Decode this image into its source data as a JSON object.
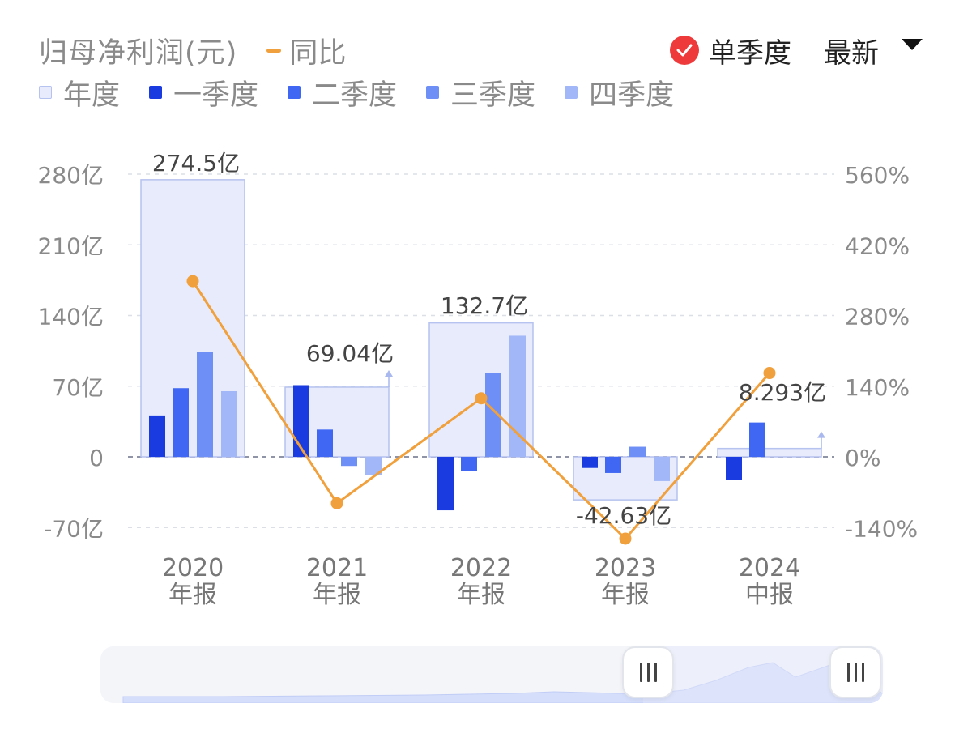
{
  "header": {
    "title": "归母净利润(元)",
    "yoy_legend": "同比",
    "single_quarter_label": "单季度",
    "latest_label": "最新"
  },
  "legend": [
    {
      "label": "年度",
      "color": "#e7ebfb",
      "border": "#b6c2ef"
    },
    {
      "label": "一季度",
      "color": "#1a3be0"
    },
    {
      "label": "二季度",
      "color": "#3f67f3"
    },
    {
      "label": "三季度",
      "color": "#6e8ff5"
    },
    {
      "label": "四季度",
      "color": "#a2b7f8"
    }
  ],
  "colors": {
    "annual_fill": "#e7ebfb",
    "annual_stroke": "#b6c2ef",
    "q1": "#1a3be0",
    "q2": "#3f67f3",
    "q3": "#6e8ff5",
    "q4": "#a2b7f8",
    "yoy_line": "#f0a03c",
    "check_red": "#ee3a3a"
  },
  "chart_data": {
    "type": "bar",
    "categories": [
      {
        "year": "2020",
        "type": "年报"
      },
      {
        "year": "2021",
        "type": "年报"
      },
      {
        "year": "2022",
        "type": "年报"
      },
      {
        "year": "2023",
        "type": "年报"
      },
      {
        "year": "2024",
        "type": "中报"
      }
    ],
    "annual_values": [
      274.5,
      69.04,
      132.7,
      -42.63,
      8.293
    ],
    "annual_labels": [
      "274.5亿",
      "69.04亿",
      "132.7亿",
      "-42.63亿",
      "8.293亿"
    ],
    "quarterly_series": [
      {
        "name": "一季度",
        "values": [
          41,
          71,
          -53,
          -11,
          -23
        ]
      },
      {
        "name": "二季度",
        "values": [
          68,
          27,
          -14,
          -16,
          34
        ]
      },
      {
        "name": "三季度",
        "values": [
          104,
          -9,
          83,
          10,
          null
        ]
      },
      {
        "name": "四季度",
        "values": [
          65,
          -18,
          120,
          -24,
          null
        ]
      }
    ],
    "yoy_series": {
      "name": "同比",
      "values": [
        348,
        -92,
        116,
        -162,
        166
      ]
    },
    "y_left": {
      "min": -70,
      "max": 280,
      "ticks": [
        280,
        210,
        140,
        70,
        0,
        -70
      ],
      "tick_labels": [
        "280亿",
        "210亿",
        "140亿",
        "70亿",
        "0",
        "-70亿"
      ]
    },
    "y_right": {
      "min": -140,
      "max": 560,
      "ticks": [
        560,
        420,
        280,
        140,
        0,
        -140
      ],
      "tick_labels": [
        "560%",
        "420%",
        "280%",
        "140%",
        "0%",
        "-140%"
      ]
    },
    "grid": true
  }
}
